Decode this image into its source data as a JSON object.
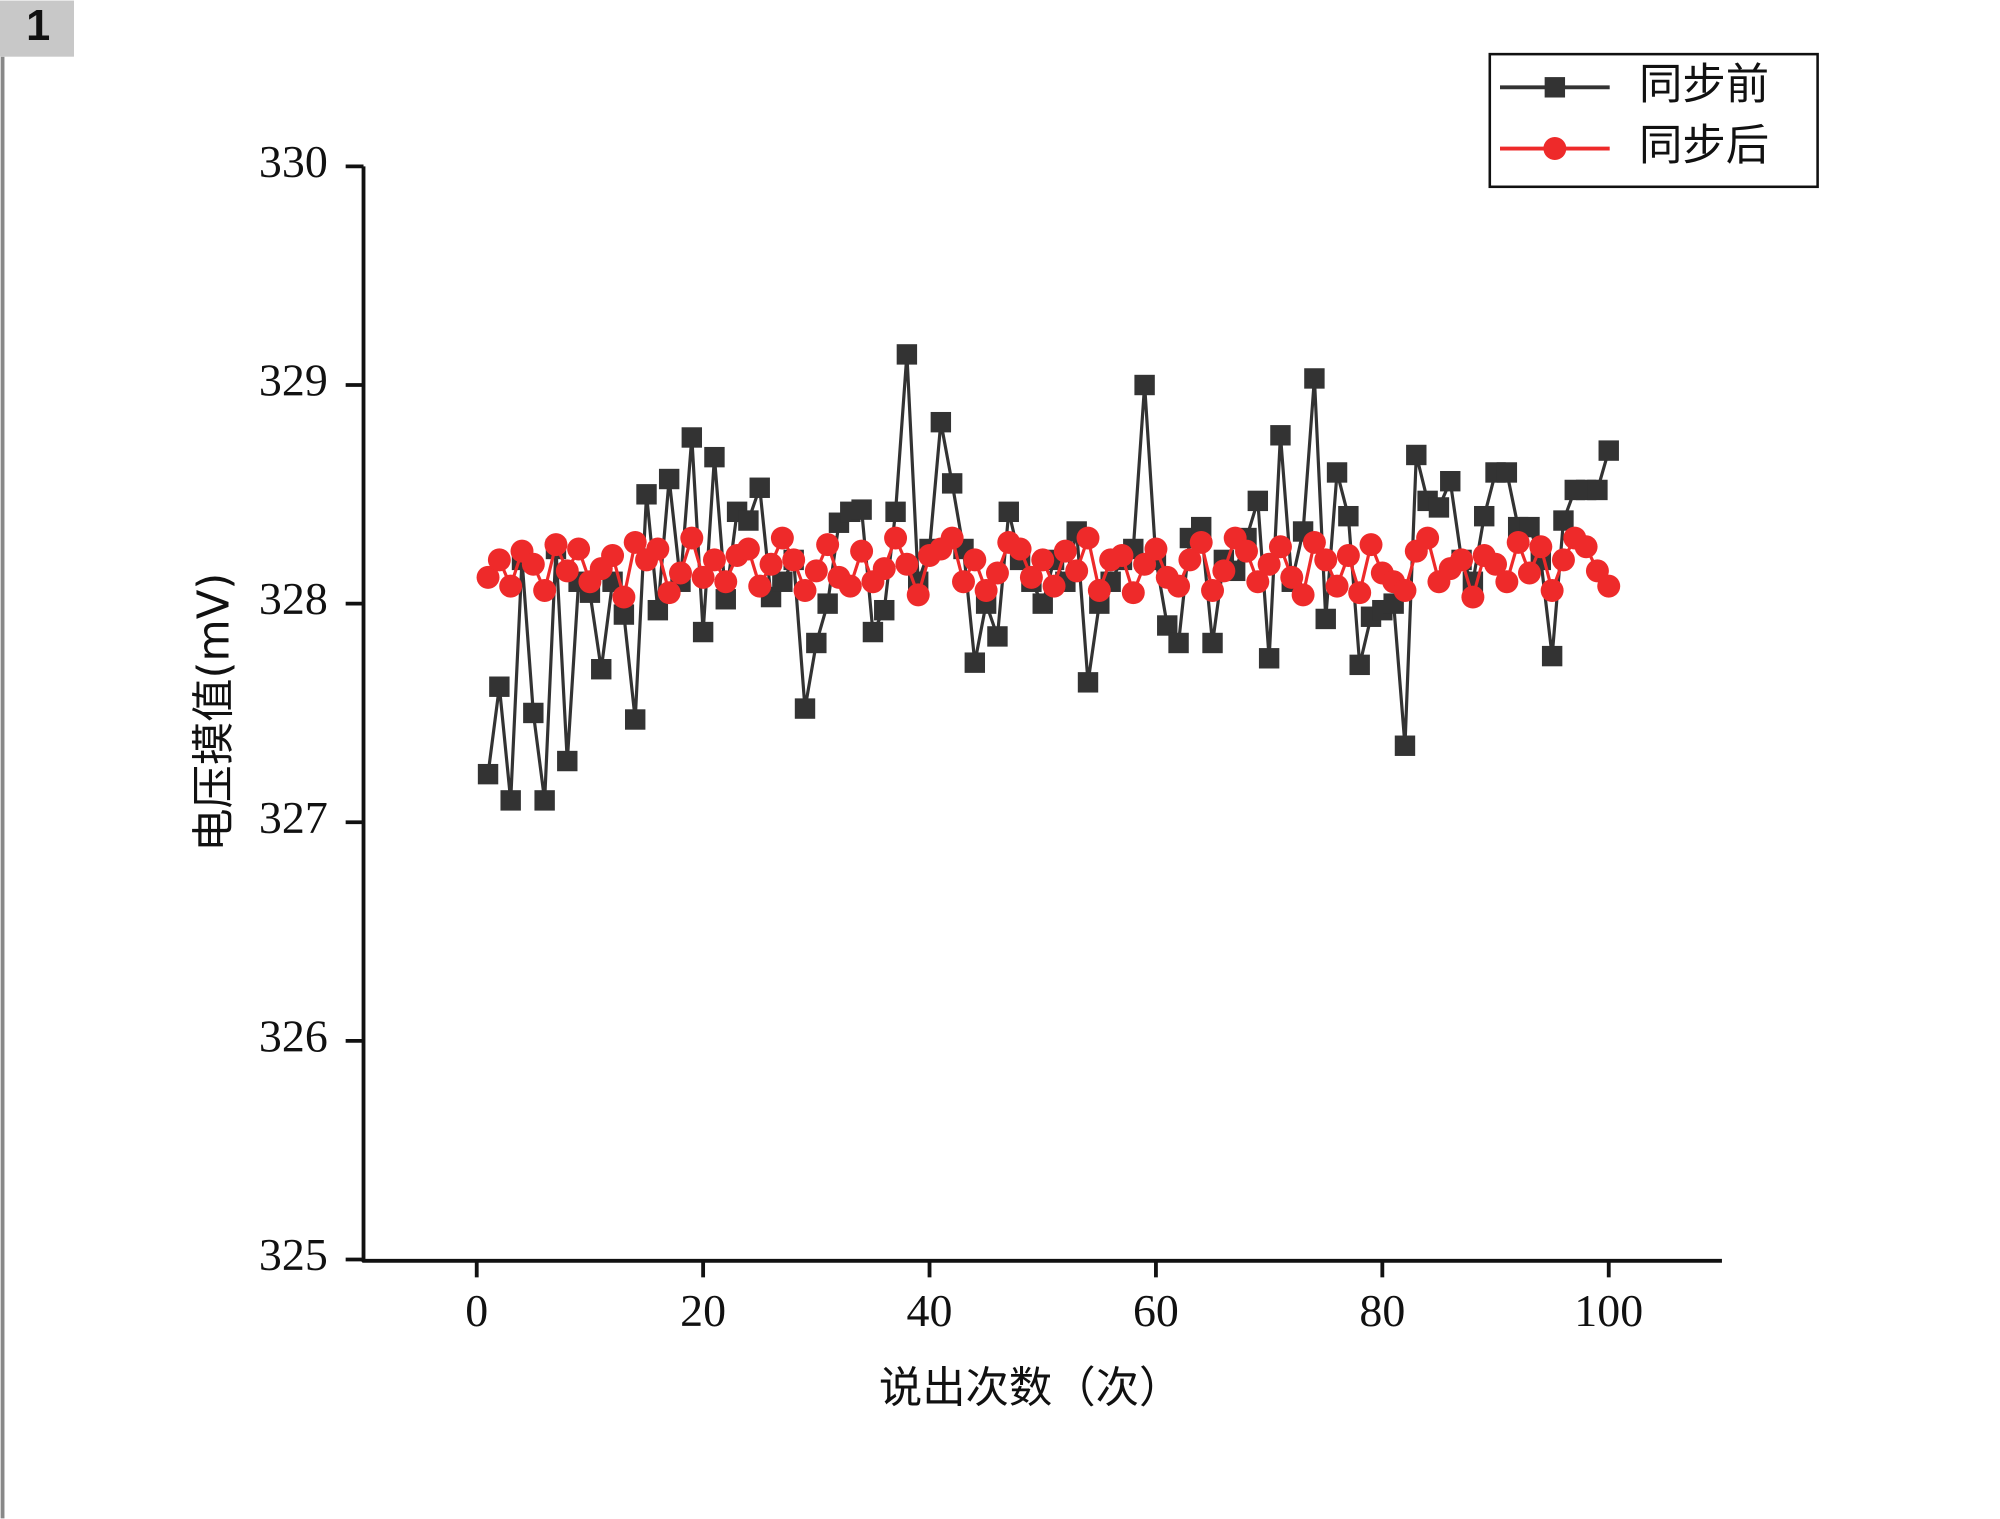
{
  "chart_data": {
    "type": "line",
    "annotation": "1",
    "xlabel": "说出次数（次）",
    "ylabel": "电压摸值(mV)",
    "xlim": [
      -10,
      110
    ],
    "ylim": [
      325,
      330
    ],
    "xticks": [
      0,
      20,
      40,
      60,
      80,
      100
    ],
    "yticks": [
      325,
      326,
      327,
      328,
      329,
      330
    ],
    "grid": false,
    "legend": "upper right",
    "x": [
      1,
      2,
      3,
      4,
      5,
      6,
      7,
      8,
      9,
      10,
      11,
      12,
      13,
      14,
      15,
      16,
      17,
      18,
      19,
      20,
      21,
      22,
      23,
      24,
      25,
      26,
      27,
      28,
      29,
      30,
      31,
      32,
      33,
      34,
      35,
      36,
      37,
      38,
      39,
      40,
      41,
      42,
      43,
      44,
      45,
      46,
      47,
      48,
      49,
      50,
      51,
      52,
      53,
      54,
      55,
      56,
      57,
      58,
      59,
      60,
      61,
      62,
      63,
      64,
      65,
      66,
      67,
      68,
      69,
      70,
      71,
      72,
      73,
      74,
      75,
      76,
      77,
      78,
      79,
      80,
      81,
      82,
      83,
      84,
      85,
      86,
      87,
      88,
      89,
      90,
      91,
      92,
      93,
      94,
      95,
      96,
      97,
      98,
      99,
      100
    ],
    "series": [
      {
        "name": "同步前",
        "color": "#333333",
        "marker": "square",
        "values": [
          327.22,
          327.62,
          327.1,
          328.2,
          327.5,
          327.1,
          328.25,
          327.28,
          328.1,
          328.05,
          327.7,
          328.1,
          327.95,
          327.47,
          328.5,
          327.97,
          328.57,
          328.1,
          328.76,
          327.87,
          328.67,
          328.02,
          328.42,
          328.38,
          328.53,
          328.03,
          328.1,
          328.2,
          327.52,
          327.82,
          328.0,
          328.37,
          328.42,
          328.43,
          327.87,
          327.97,
          328.42,
          329.14,
          328.1,
          328.25,
          328.83,
          328.55,
          328.25,
          327.73,
          328.0,
          327.85,
          328.42,
          328.2,
          328.1,
          328.0,
          328.2,
          328.1,
          328.33,
          327.64,
          328.0,
          328.1,
          328.2,
          328.25,
          329.0,
          328.2,
          327.9,
          327.82,
          328.3,
          328.35,
          327.82,
          328.2,
          328.15,
          328.3,
          328.47,
          327.75,
          328.77,
          328.1,
          328.33,
          329.03,
          327.93,
          328.6,
          328.4,
          327.72,
          327.94,
          327.97,
          328.0,
          327.35,
          328.68,
          328.47,
          328.44,
          328.56,
          328.2,
          328.1,
          328.4,
          328.6,
          328.6,
          328.35,
          328.35,
          328.2,
          327.76,
          328.38,
          328.52,
          328.52,
          328.52,
          328.7
        ]
      },
      {
        "name": "同步后",
        "color": "#ee2a2a",
        "marker": "circle",
        "values": [
          328.12,
          328.2,
          328.08,
          328.24,
          328.18,
          328.06,
          328.27,
          328.15,
          328.25,
          328.1,
          328.16,
          328.22,
          328.03,
          328.28,
          328.2,
          328.25,
          328.05,
          328.14,
          328.3,
          328.12,
          328.2,
          328.1,
          328.22,
          328.25,
          328.08,
          328.18,
          328.3,
          328.2,
          328.06,
          328.15,
          328.27,
          328.12,
          328.08,
          328.24,
          328.1,
          328.16,
          328.3,
          328.18,
          328.04,
          328.22,
          328.25,
          328.3,
          328.1,
          328.2,
          328.06,
          328.14,
          328.28,
          328.25,
          328.12,
          328.2,
          328.08,
          328.24,
          328.15,
          328.3,
          328.06,
          328.2,
          328.22,
          328.05,
          328.18,
          328.25,
          328.12,
          328.08,
          328.2,
          328.28,
          328.06,
          328.15,
          328.3,
          328.24,
          328.1,
          328.18,
          328.26,
          328.12,
          328.04,
          328.28,
          328.2,
          328.08,
          328.22,
          328.05,
          328.27,
          328.14,
          328.1,
          328.06,
          328.24,
          328.3,
          328.1,
          328.16,
          328.2,
          328.03,
          328.22,
          328.18,
          328.1,
          328.28,
          328.14,
          328.26,
          328.06,
          328.2,
          328.3,
          328.26,
          328.15,
          328.08
        ]
      }
    ]
  }
}
